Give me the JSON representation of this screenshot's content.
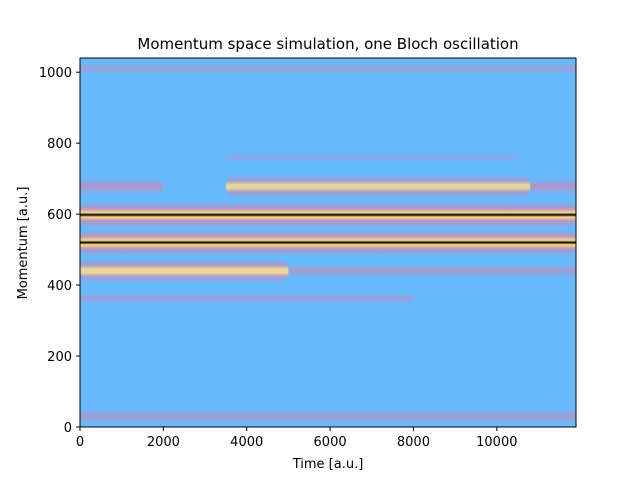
{
  "chart_data": {
    "type": "heatmap",
    "title": "Momentum space simulation, one Bloch oscillation",
    "xlabel": "Time [a.u.]",
    "ylabel": "Momentum [a.u.]",
    "xlim": [
      0,
      11900
    ],
    "ylim": [
      0,
      1040
    ],
    "x_ticks": [
      0,
      2000,
      4000,
      6000,
      8000,
      10000
    ],
    "y_ticks": [
      0,
      200,
      400,
      600,
      800,
      1000
    ],
    "background_color": "#66bbff",
    "colormap": [
      "#66bbff",
      "#ff6f8c",
      "#ffdd88",
      "#000000"
    ],
    "bands": [
      {
        "momentum": 1010,
        "t_start": 0,
        "t_end": 11900,
        "intensity": 0.25
      },
      {
        "momentum": 760,
        "t_start": 3500,
        "t_end": 10500,
        "intensity": 0.15
      },
      {
        "momentum": 678,
        "t_start": 0,
        "t_end": 2000,
        "intensity": 0.45
      },
      {
        "momentum": 678,
        "t_start": 3500,
        "t_end": 10800,
        "intensity": 0.8
      },
      {
        "momentum": 678,
        "t_start": 10800,
        "t_end": 11900,
        "intensity": 0.45
      },
      {
        "momentum": 598,
        "t_start": 0,
        "t_end": 11900,
        "intensity": 1.0
      },
      {
        "momentum": 520,
        "t_start": 0,
        "t_end": 11900,
        "intensity": 1.0
      },
      {
        "momentum": 440,
        "t_start": 0,
        "t_end": 5000,
        "intensity": 0.85
      },
      {
        "momentum": 440,
        "t_start": 5000,
        "t_end": 11900,
        "intensity": 0.35
      },
      {
        "momentum": 362,
        "t_start": 0,
        "t_end": 8000,
        "intensity": 0.25
      },
      {
        "momentum": 30,
        "t_start": 0,
        "t_end": 11900,
        "intensity": 0.35
      }
    ]
  }
}
